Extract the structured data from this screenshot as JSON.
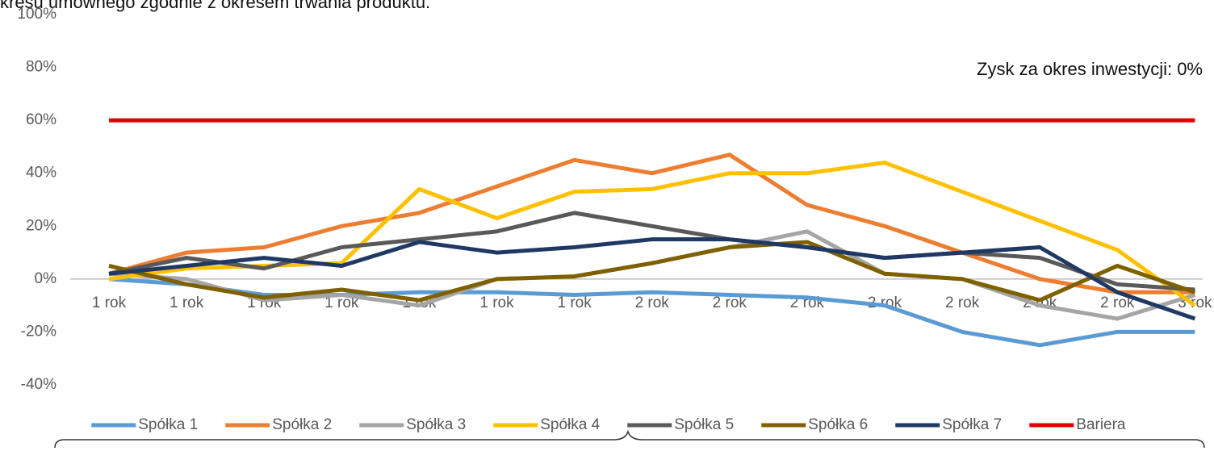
{
  "chart_data": {
    "type": "line",
    "title": "kresu umownego zgodnie z okresem trwania produktu.",
    "annotation": "Zysk za okres inwestycji: 0%",
    "categories": [
      "1 rok",
      "1 rok",
      "1 rok",
      "1 rok",
      "1 rok",
      "1 rok",
      "1 rok",
      "2 rok",
      "2 rok",
      "2 rok",
      "2 rok",
      "2 rok",
      "2 rok",
      "2 rok",
      "3 rok"
    ],
    "ylim": [
      -40,
      100
    ],
    "yticks": [
      {
        "value": -40,
        "label": "-40%"
      },
      {
        "value": -20,
        "label": "-20%"
      },
      {
        "value": 0,
        "label": "0%"
      },
      {
        "value": 20,
        "label": "20%"
      },
      {
        "value": 40,
        "label": "40%"
      },
      {
        "value": 60,
        "label": "60%"
      },
      {
        "value": 80,
        "label": "80%"
      },
      {
        "value": 100,
        "label": "100%"
      }
    ],
    "grid": false,
    "legend": "bottom",
    "series": [
      {
        "name": "Spółka 1",
        "color": "#5b9bd5",
        "values": [
          0,
          -2,
          -6,
          -6,
          -5,
          -5,
          -6,
          -5,
          -6,
          -7,
          -10,
          -20,
          -25,
          -20,
          -20
        ]
      },
      {
        "name": "Spółka 2",
        "color": "#ed7d31",
        "values": [
          2,
          10,
          12,
          20,
          25,
          35,
          45,
          40,
          47,
          28,
          20,
          10,
          0,
          -5,
          -5
        ]
      },
      {
        "name": "Spółka 3",
        "color": "#a5a5a5",
        "values": [
          2,
          0,
          -8,
          -6,
          -10,
          0,
          1,
          6,
          12,
          18,
          2,
          0,
          -10,
          -15,
          -6
        ]
      },
      {
        "name": "Spółka 4",
        "color": "#ffc000",
        "values": [
          0,
          4,
          5,
          6,
          34,
          23,
          33,
          34,
          40,
          40,
          44,
          33,
          22,
          11,
          -10
        ]
      },
      {
        "name": "Spółka 5",
        "color": "#595959",
        "values": [
          2,
          8,
          4,
          12,
          15,
          18,
          25,
          20,
          15,
          12,
          8,
          10,
          8,
          -2,
          -4
        ]
      },
      {
        "name": "Spółka 6",
        "color": "#7f6000",
        "values": [
          5,
          -2,
          -7,
          -4,
          -8,
          0,
          1,
          6,
          12,
          14,
          2,
          0,
          -8,
          5,
          -5
        ]
      },
      {
        "name": "Spółka 7",
        "color": "#1f3864",
        "values": [
          2,
          5,
          8,
          5,
          14,
          10,
          12,
          15,
          15,
          12,
          8,
          10,
          12,
          -5,
          -15
        ]
      },
      {
        "name": "Bariera",
        "color": "#e50000",
        "values": [
          60,
          60,
          60,
          60,
          60,
          60,
          60,
          60,
          60,
          60,
          60,
          60,
          60,
          60,
          60
        ]
      }
    ]
  }
}
